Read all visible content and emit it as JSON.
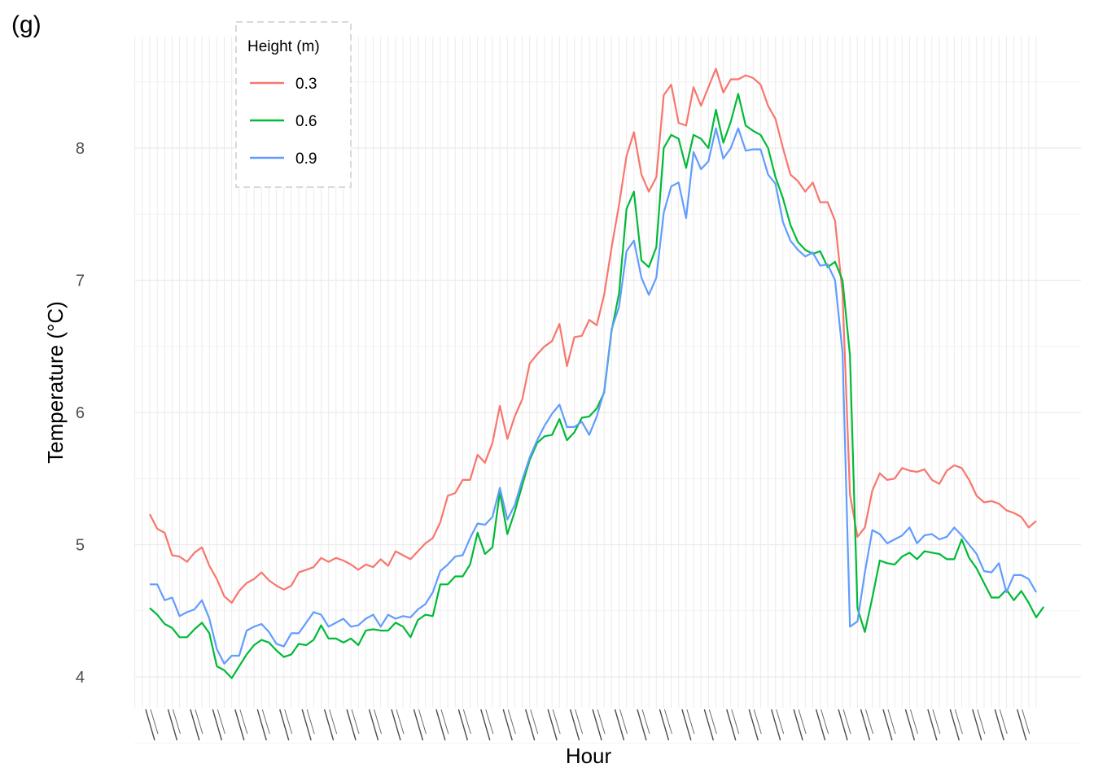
{
  "panel_tag": "(g)",
  "chart_data": {
    "type": "line",
    "xlabel": "Hour",
    "ylabel": "Temperature (°C)",
    "ylim": [
      3.8,
      8.7
    ],
    "yticks": [
      4,
      5,
      6,
      7,
      8
    ],
    "grid": true,
    "legend": {
      "title": "Height (m)",
      "placement": "top-left"
    },
    "x_tick_note": "x-axis tick labels are rotated and overlap illegibly",
    "series": [
      {
        "name": "0.3",
        "color": "#F8766D",
        "values": [
          5.23,
          5.12,
          5.09,
          4.92,
          4.91,
          4.87,
          4.94,
          4.98,
          4.84,
          4.74,
          4.61,
          4.56,
          4.65,
          4.71,
          4.74,
          4.79,
          4.73,
          4.69,
          4.66,
          4.69,
          4.79,
          4.81,
          4.83,
          4.9,
          4.87,
          4.9,
          4.88,
          4.85,
          4.81,
          4.85,
          4.83,
          4.89,
          4.84,
          4.95,
          4.92,
          4.89,
          4.95,
          5.01,
          5.05,
          5.17,
          5.37,
          5.39,
          5.49,
          5.49,
          5.68,
          5.62,
          5.77,
          6.05,
          5.8,
          5.97,
          6.1,
          6.37,
          6.44,
          6.5,
          6.54,
          6.67,
          6.35,
          6.57,
          6.58,
          6.7,
          6.66,
          6.89,
          7.25,
          7.57,
          7.94,
          8.12,
          7.8,
          7.67,
          7.78,
          8.4,
          8.48,
          8.19,
          8.17,
          8.46,
          8.32,
          8.46,
          8.6,
          8.42,
          8.52,
          8.52,
          8.55,
          8.53,
          8.48,
          8.32,
          8.22,
          8.0,
          7.8,
          7.75,
          7.67,
          7.74,
          7.59,
          7.59,
          7.45,
          6.9,
          5.38,
          5.06,
          5.13,
          5.41,
          5.54,
          5.49,
          5.5,
          5.58,
          5.56,
          5.55,
          5.57,
          5.49,
          5.46,
          5.56,
          5.6,
          5.58,
          5.49,
          5.37,
          5.32,
          5.33,
          5.31,
          5.26,
          5.24,
          5.21,
          5.13,
          5.18
        ]
      },
      {
        "name": "0.6",
        "color": "#00BA38",
        "values": [
          4.52,
          4.47,
          4.4,
          4.37,
          4.3,
          4.3,
          4.36,
          4.41,
          4.33,
          4.08,
          4.05,
          3.99,
          4.08,
          4.17,
          4.24,
          4.28,
          4.26,
          4.2,
          4.15,
          4.17,
          4.25,
          4.24,
          4.28,
          4.39,
          4.29,
          4.29,
          4.26,
          4.29,
          4.24,
          4.35,
          4.36,
          4.35,
          4.35,
          4.41,
          4.38,
          4.3,
          4.43,
          4.47,
          4.46,
          4.7,
          4.7,
          4.76,
          4.76,
          4.85,
          5.09,
          4.93,
          4.98,
          5.4,
          5.08,
          5.25,
          5.45,
          5.64,
          5.77,
          5.82,
          5.83,
          5.95,
          5.79,
          5.85,
          5.96,
          5.97,
          6.03,
          6.15,
          6.62,
          6.9,
          7.54,
          7.67,
          7.15,
          7.1,
          7.25,
          8.0,
          8.1,
          8.07,
          7.85,
          8.1,
          8.07,
          8.0,
          8.29,
          8.04,
          8.2,
          8.41,
          8.17,
          8.13,
          8.1,
          8.0,
          7.78,
          7.62,
          7.42,
          7.29,
          7.23,
          7.2,
          7.22,
          7.1,
          7.14,
          7.0,
          6.43,
          4.52,
          4.34,
          4.6,
          4.88,
          4.86,
          4.85,
          4.91,
          4.94,
          4.89,
          4.95,
          4.94,
          4.93,
          4.89,
          4.89,
          5.04,
          4.9,
          4.82,
          4.71,
          4.6,
          4.6,
          4.66,
          4.58,
          4.65,
          4.56,
          4.45,
          4.53
        ]
      },
      {
        "name": "0.9",
        "color": "#619CFF",
        "values": [
          4.7,
          4.7,
          4.58,
          4.6,
          4.46,
          4.49,
          4.51,
          4.58,
          4.44,
          4.21,
          4.1,
          4.16,
          4.16,
          4.35,
          4.38,
          4.4,
          4.34,
          4.25,
          4.23,
          4.33,
          4.33,
          4.41,
          4.49,
          4.47,
          4.38,
          4.41,
          4.44,
          4.38,
          4.39,
          4.44,
          4.47,
          4.38,
          4.47,
          4.44,
          4.46,
          4.45,
          4.51,
          4.55,
          4.64,
          4.8,
          4.85,
          4.91,
          4.92,
          5.05,
          5.16,
          5.15,
          5.21,
          5.43,
          5.19,
          5.3,
          5.49,
          5.66,
          5.79,
          5.9,
          5.99,
          6.06,
          5.89,
          5.89,
          5.93,
          5.83,
          5.97,
          6.16,
          6.63,
          6.8,
          7.22,
          7.3,
          7.02,
          6.89,
          7.02,
          7.51,
          7.71,
          7.74,
          7.47,
          7.97,
          7.84,
          7.9,
          8.15,
          7.92,
          8.0,
          8.15,
          7.98,
          7.99,
          7.99,
          7.8,
          7.73,
          7.44,
          7.3,
          7.23,
          7.18,
          7.21,
          7.11,
          7.12,
          7.0,
          6.45,
          4.38,
          4.42,
          4.79,
          5.11,
          5.08,
          5.01,
          5.04,
          5.07,
          5.13,
          5.01,
          5.07,
          5.08,
          5.04,
          5.06,
          5.13,
          5.07,
          5.0,
          4.93,
          4.8,
          4.79,
          4.86,
          4.64,
          4.77,
          4.77,
          4.74,
          4.64
        ]
      }
    ]
  }
}
